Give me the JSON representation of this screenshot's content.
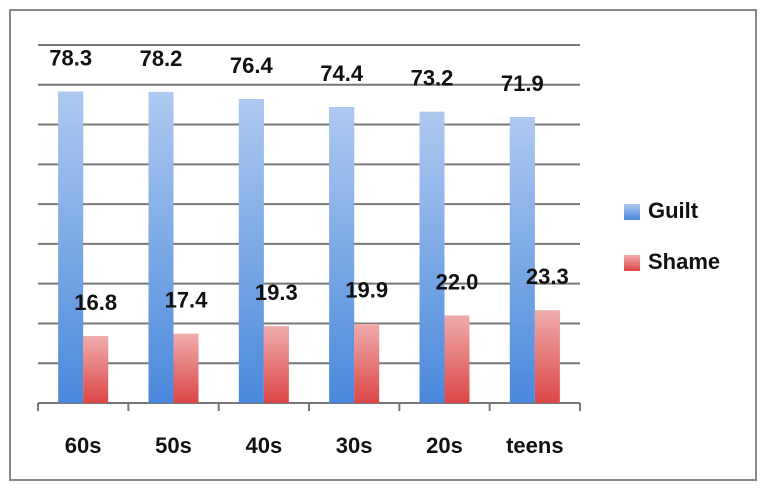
{
  "chart_data": {
    "type": "bar",
    "categories": [
      "60s",
      "50s",
      "40s",
      "30s",
      "20s",
      "teens"
    ],
    "series": [
      {
        "name": "Guilt",
        "color": "#4a88dc",
        "values": [
          78.3,
          78.2,
          76.4,
          74.4,
          73.2,
          71.9
        ]
      },
      {
        "name": "Shame",
        "color": "#dc4646",
        "values": [
          16.8,
          17.4,
          19.3,
          19.9,
          22.0,
          23.3
        ],
        "value_labels": [
          "16.8",
          "17.4",
          "19.3",
          "19.9",
          "22.0",
          "23.3"
        ]
      }
    ],
    "ylim": [
      0,
      90
    ],
    "yticks": [
      0,
      10,
      20,
      30,
      40,
      50,
      60,
      70,
      80,
      90
    ],
    "grid": true,
    "legend": "right"
  }
}
